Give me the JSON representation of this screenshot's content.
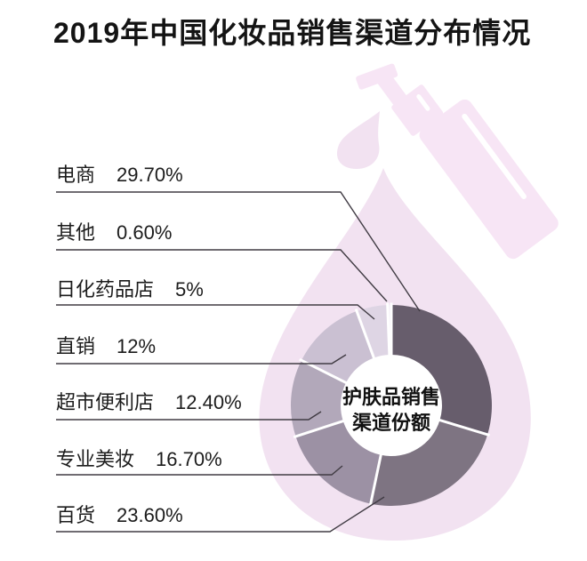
{
  "title": "2019年中国化妆品销售渠道分布情况",
  "chart_data": {
    "type": "pie",
    "variant": "donut",
    "title": "2019年中国化妆品销售渠道分布情况",
    "center_label": "护肤品销售渠道份额",
    "center_label_lines": [
      "护肤品销售",
      "渠道份额"
    ],
    "categories": [
      "电商",
      "其他",
      "日化药品店",
      "直销",
      "超市便利店",
      "专业美妆",
      "百货"
    ],
    "values": [
      29.7,
      0.6,
      5,
      12,
      12.4,
      16.7,
      23.6
    ],
    "value_labels": [
      "29.70%",
      "0.60%",
      "5%",
      "12%",
      "12.40%",
      "16.70%",
      "23.60%"
    ],
    "unit": "%",
    "clockwise_order_from_top": [
      "电商",
      "百货",
      "专业美妆",
      "超市便利店",
      "直销",
      "日化药品店",
      "其他"
    ],
    "legend_position": "left",
    "grid": false
  },
  "colors": {
    "slices": [
      "#675d6c",
      "#f1ecf4",
      "#ded5e4",
      "#cac0d2",
      "#b2a8ba",
      "#9c91a4",
      "#7e7482"
    ],
    "watermark_drop": "#f2e2f1",
    "watermark_bottle": "#f7e5f5",
    "highlight": "#ffffff",
    "leader_line": "#413c44",
    "title_text": "#141414",
    "label_text": "#1c1c1c",
    "center_text": "#111111",
    "background": "#ffffff"
  }
}
